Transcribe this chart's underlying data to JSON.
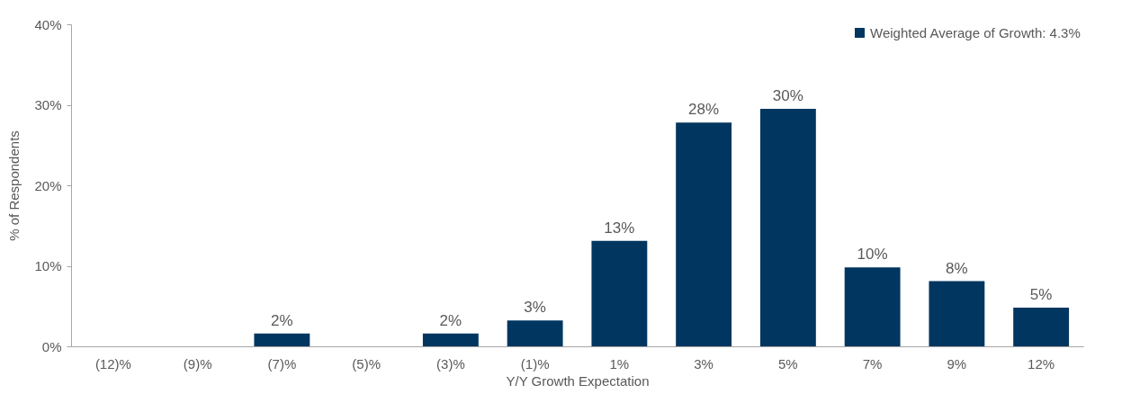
{
  "chart_data": {
    "type": "bar",
    "xlabel": "Y/Y Growth Expectation",
    "ylabel": "% of Respondents",
    "categories": [
      "(12)%",
      "(9)%",
      "(7)%",
      "(5)%",
      "(3)%",
      "(1)%",
      "1%",
      "3%",
      "5%",
      "7%",
      "9%",
      "12%"
    ],
    "series": [
      {
        "name": "Weighted Average of Growth: 4.3%",
        "color": "#003660",
        "values": [
          0,
          0,
          1.6,
          0,
          1.6,
          3.2,
          13.1,
          27.8,
          29.5,
          9.8,
          8.1,
          4.8
        ],
        "value_labels": [
          null,
          null,
          "2%",
          null,
          "2%",
          "3%",
          "13%",
          "28%",
          "30%",
          "10%",
          "8%",
          "5%"
        ]
      }
    ],
    "ylim": [
      0,
      40
    ],
    "yticks": [
      {
        "value": 0,
        "label": "0%"
      },
      {
        "value": 10,
        "label": "10%"
      },
      {
        "value": 20,
        "label": "20%"
      },
      {
        "value": 30,
        "label": "30%"
      },
      {
        "value": 40,
        "label": "40%"
      }
    ],
    "legend": "top right",
    "grid": false
  }
}
